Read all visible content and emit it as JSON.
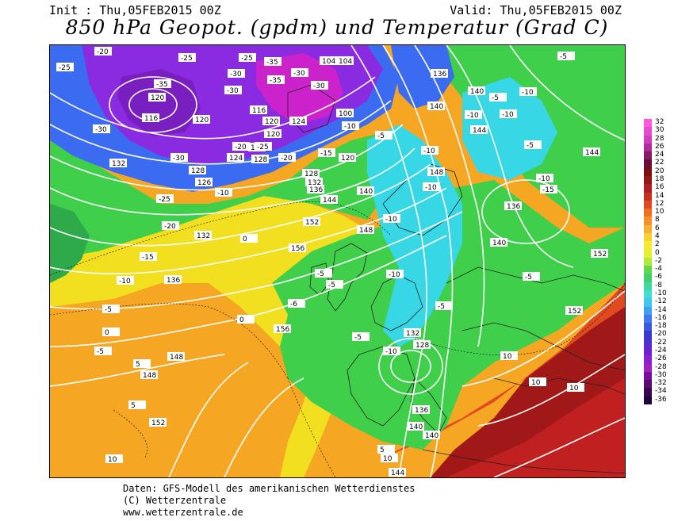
{
  "header": {
    "init": "Init : Thu,05FEB2015 00Z",
    "valid": "Valid: Thu,05FEB2015 00Z",
    "title": "850 hPa Geopot. (gpdm) und Temperatur (Grad C)"
  },
  "colors": {
    "ocean_dark": "#0b5f3a",
    "green": "#3fcf4b",
    "cyan": "#38d7e6",
    "blue": "#3a6bf0",
    "purple": "#8a2be2",
    "magenta": "#cc22cc",
    "yellow": "#f2e020",
    "orange": "#f5a623",
    "red": "#e04020",
    "darkred": "#a01818",
    "isobar": "#ffffff"
  },
  "colorbar": {
    "ticks": [
      "32",
      "30",
      "28",
      "26",
      "24",
      "22",
      "20",
      "18",
      "16",
      "14",
      "12",
      "10",
      "8",
      "6",
      "4",
      "2",
      "0",
      "-2",
      "-4",
      "-6",
      "-8",
      "-10",
      "-12",
      "-14",
      "-16",
      "-18",
      "-20",
      "-22",
      "-24",
      "-26",
      "-28",
      "-30",
      "-32",
      "-34",
      "-36"
    ],
    "colors": [
      "#ff5adf",
      "#e84ad0",
      "#d43cc0",
      "#b02a9a",
      "#8a1a6a",
      "#6a0f3a",
      "#7a0f10",
      "#951818",
      "#b02020",
      "#c83020",
      "#e04a20",
      "#f07020",
      "#f5922a",
      "#f8b030",
      "#fad030",
      "#f6ea30",
      "#e6f030",
      "#b0e840",
      "#60d848",
      "#40d070",
      "#40d8a0",
      "#40e0d0",
      "#40c8f0",
      "#40a0f0",
      "#4078f0",
      "#3a5ae0",
      "#3a3ad0",
      "#5030d0",
      "#7020d0",
      "#8a20d0",
      "#a020c0",
      "#7a1098",
      "#5a0a70",
      "#3a0650",
      "#22033a"
    ]
  },
  "map_labels": {
    "geopotential": [
      "120",
      "116",
      "120",
      "116",
      "120",
      "124",
      "132",
      "128",
      "126",
      "124",
      "128",
      "128",
      "132",
      "136",
      "120",
      "120",
      "116",
      "104",
      "104",
      "100",
      "140",
      "144",
      "148",
      "136",
      "140",
      "140",
      "144",
      "148",
      "152",
      "156",
      "156",
      "148",
      "152",
      "136",
      "132",
      "128",
      "140",
      "136",
      "140",
      "144",
      "148",
      "152",
      "144",
      "152",
      "140",
      "136",
      "132"
    ],
    "temperature": [
      "-20",
      "-25",
      "-25",
      "-30",
      "-35",
      "-30",
      "-35",
      "-30",
      "-30",
      "-35",
      "-25",
      "-20",
      "-30",
      "-30",
      "-20",
      "-25",
      "-10",
      "-15",
      "-10",
      "-5",
      "-25",
      "-20",
      "-15",
      "-10",
      "-5",
      "0",
      "-5",
      "5",
      "5",
      "10",
      "-5",
      "-10",
      "-10",
      "-5",
      "-10",
      "-10",
      "-10",
      "-15",
      "-10",
      "-5",
      "-5",
      "-10",
      "-10",
      "-5",
      "0",
      "0",
      "-6",
      "-5",
      "-5",
      "-10",
      "-5",
      "5",
      "10",
      "10",
      "10",
      "10"
    ]
  },
  "footer": {
    "line1": "Daten: GFS-Modell des amerikanischen Wetterdienstes",
    "line2": "(C) Wetterzentrale",
    "line3": "www.wetterzentrale.de"
  }
}
